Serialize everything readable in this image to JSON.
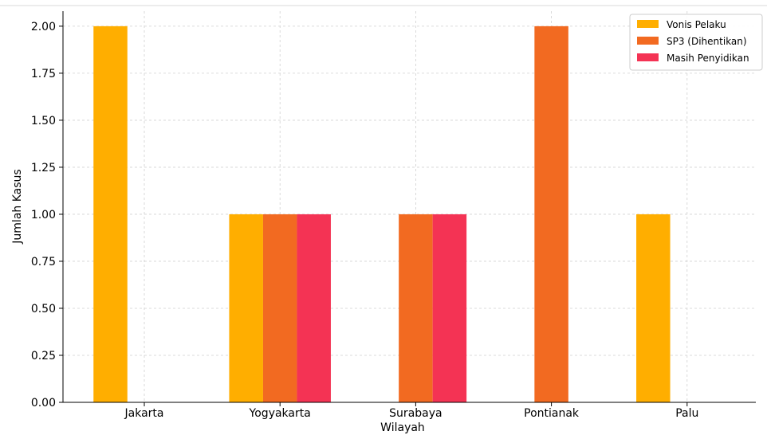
{
  "chart_data": {
    "type": "bar",
    "title": "",
    "xlabel": "Wilayah",
    "ylabel": "Jumlah Kasus",
    "categories": [
      "Jakarta",
      "Yogyakarta",
      "Surabaya",
      "Pontianak",
      "Palu"
    ],
    "series": [
      {
        "name": "Vonis Pelaku",
        "color": "#FFAE00",
        "values": [
          2,
          1,
          0,
          0,
          1
        ]
      },
      {
        "name": "SP3 (Dihentikan)",
        "color": "#F26A21",
        "values": [
          0,
          1,
          1,
          2,
          0
        ]
      },
      {
        "name": "Masih Penyidikan",
        "color": "#F43354",
        "values": [
          0,
          1,
          1,
          0,
          0
        ]
      }
    ],
    "ylim": [
      0,
      2.08
    ],
    "yticks": [
      "0.00",
      "0.25",
      "0.50",
      "0.75",
      "1.00",
      "1.25",
      "1.50",
      "1.75",
      "2.00"
    ],
    "grid": true,
    "legend_position": "top-right"
  }
}
